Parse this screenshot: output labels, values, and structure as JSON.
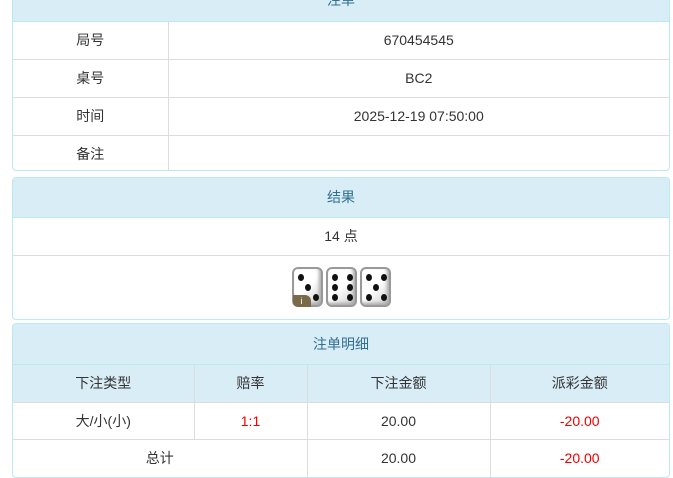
{
  "order": {
    "title": "注单",
    "rows": [
      {
        "label": "局号",
        "value": "670454545"
      },
      {
        "label": "桌号",
        "value": "BC2"
      },
      {
        "label": "时间",
        "value": "2025-12-19 07:50:00"
      },
      {
        "label": "备注",
        "value": ""
      }
    ]
  },
  "result": {
    "title": "结果",
    "points": "14 点",
    "dice": [
      3,
      6,
      5
    ],
    "info_badge": "i"
  },
  "detail": {
    "title": "注单明细",
    "headers": [
      "下注类型",
      "赔率",
      "下注金额",
      "派彩金额"
    ],
    "rows": [
      {
        "type": "大/小(小)",
        "odds": "1:1",
        "bet": "20.00",
        "payout": "-20.00"
      }
    ],
    "total": {
      "label": "总计",
      "bet": "20.00",
      "payout": "-20.00"
    }
  },
  "colors": {
    "header_bg": "#d9edf7",
    "header_text": "#31708f",
    "negative": "#e00000"
  }
}
